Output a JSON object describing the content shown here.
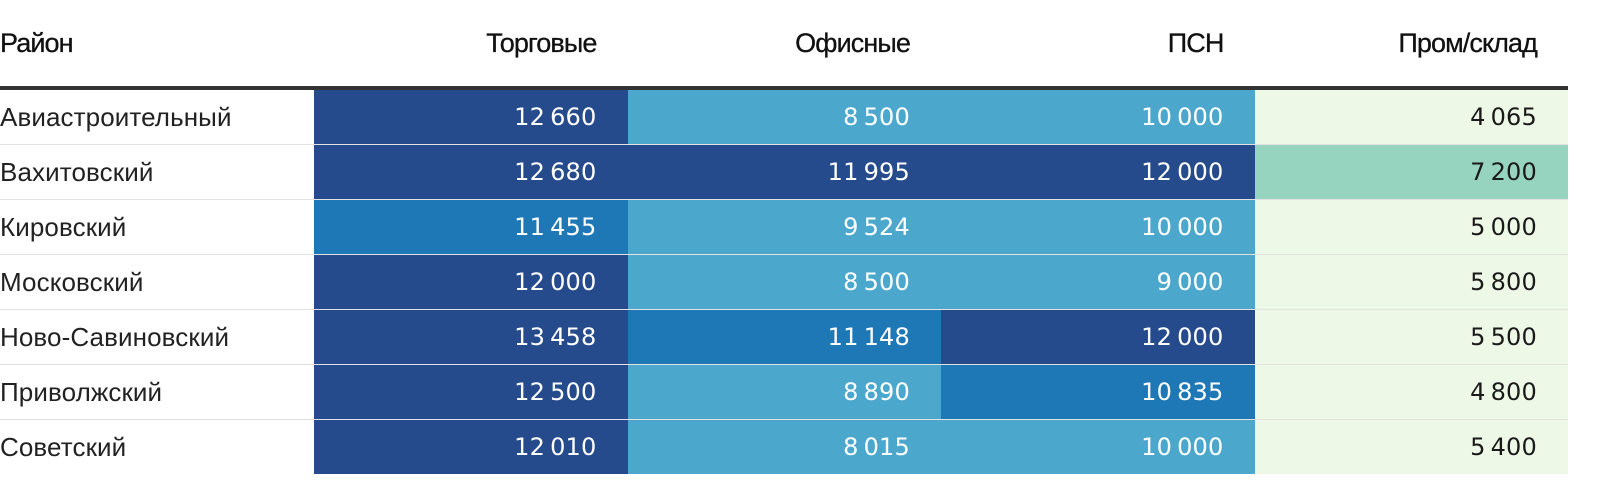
{
  "chart_data": {
    "type": "heatmap",
    "title": "",
    "columns": [
      "Район",
      "Торговые",
      "Офисные",
      "ПСН",
      "Пром/склад"
    ],
    "rows": [
      {
        "district": "Авиастроительный",
        "values": [
          12660,
          8500,
          10000,
          4065
        ]
      },
      {
        "district": "Вахитовский",
        "values": [
          12680,
          11995,
          12000,
          7200
        ]
      },
      {
        "district": "Кировский",
        "values": [
          11455,
          9524,
          10000,
          5000
        ]
      },
      {
        "district": "Московский",
        "values": [
          12000,
          8500,
          9000,
          5800
        ]
      },
      {
        "district": "Ново-Савиновский",
        "values": [
          13458,
          11148,
          12000,
          5500
        ]
      },
      {
        "district": "Приволжский",
        "values": [
          12500,
          8890,
          10835,
          4800
        ]
      },
      {
        "district": "Советский",
        "values": [
          12010,
          8015,
          10000,
          5400
        ]
      }
    ],
    "color_scale": [
      {
        "max": 7000,
        "color": "#eef8e6",
        "text_color": "#1a1a1a"
      },
      {
        "max": 8000,
        "color": "#97d4bf",
        "text_color": "#1a1a1a"
      },
      {
        "max": 10000,
        "color": "#4ba8cc",
        "text_color": "#ffffff"
      },
      {
        "max": 11700,
        "color": "#1e78b6",
        "text_color": "#ffffff"
      },
      {
        "max": 999999,
        "color": "#254b8c",
        "text_color": "#ffffff"
      }
    ]
  }
}
